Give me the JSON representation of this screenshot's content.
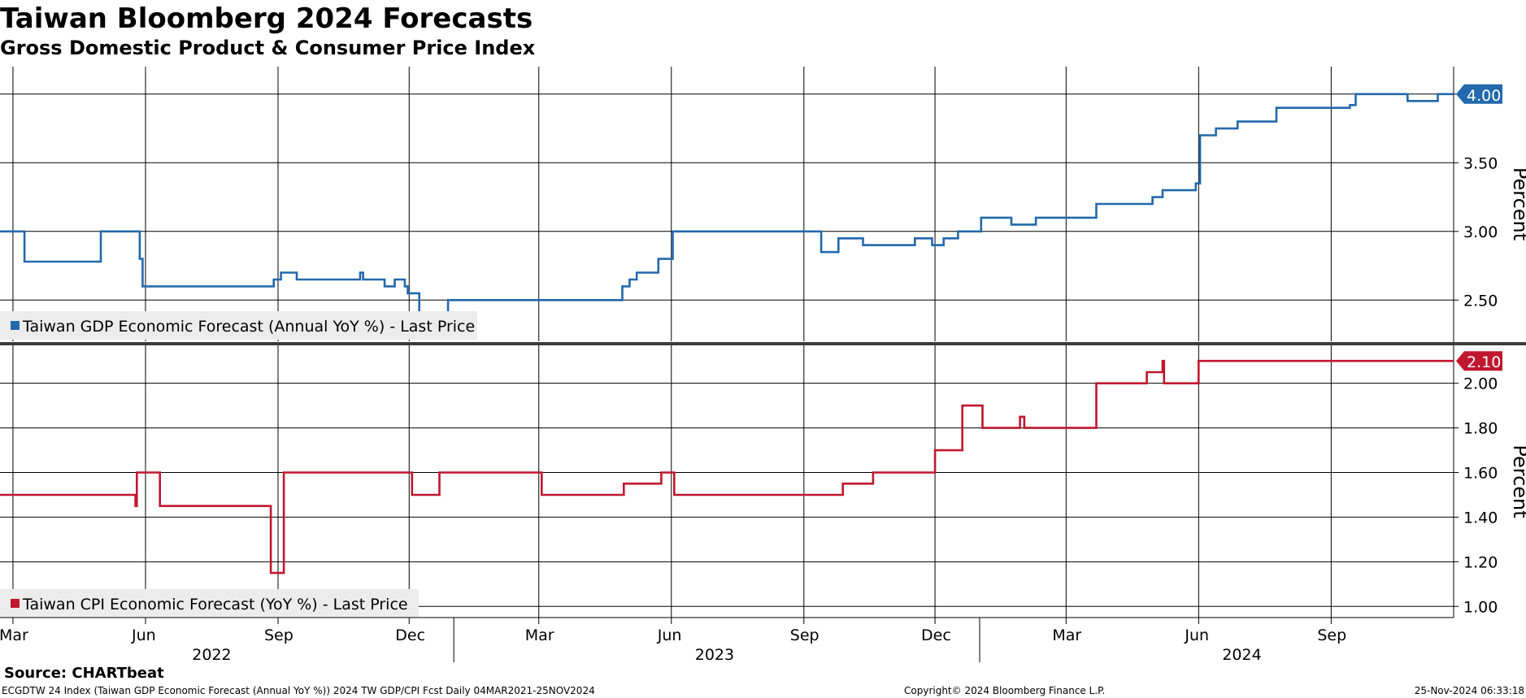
{
  "title": "Taiwan Bloomberg 2024 Forecasts",
  "subtitle": "Gross Domestic Product & Consumer Price Index",
  "footer": {
    "source": "Source: CHARTbeat",
    "left": "ECGDTW 24 Index (Taiwan GDP Economic Forecast (Annual YoY %)) 2024 TW GDP/CPI Fcst  Daily 04MAR2021-25NOV2024",
    "middle": "Copyright© 2024 Bloomberg Finance L.P.",
    "right": "25-Nov-2024 06:33:18"
  },
  "x_axis": {
    "range": [
      "2022-02-20",
      "2024-11-25"
    ],
    "month_ticks": [
      {
        "label": "Mar",
        "date": "2022-03-01"
      },
      {
        "label": "Jun",
        "date": "2022-06-01"
      },
      {
        "label": "Sep",
        "date": "2022-09-01"
      },
      {
        "label": "Dec",
        "date": "2022-12-01"
      },
      {
        "label": "Mar",
        "date": "2023-03-01"
      },
      {
        "label": "Jun",
        "date": "2023-06-01"
      },
      {
        "label": "Sep",
        "date": "2023-09-01"
      },
      {
        "label": "Dec",
        "date": "2023-12-01"
      },
      {
        "label": "Mar",
        "date": "2024-03-01"
      },
      {
        "label": "Jun",
        "date": "2024-06-01"
      },
      {
        "label": "Sep",
        "date": "2024-09-01"
      }
    ],
    "year_labels": [
      {
        "label": "2022",
        "date": "2022-07-17"
      },
      {
        "label": "2023",
        "date": "2023-07-01"
      },
      {
        "label": "2024",
        "date": "2024-07-01"
      }
    ],
    "year_separators": [
      "2023-01-01",
      "2024-01-01"
    ]
  },
  "chart_data": [
    {
      "type": "line",
      "ylabel": "Percent",
      "ylim": [
        2.2,
        4.2
      ],
      "yticks": [
        2.5,
        3.0,
        3.5,
        4.0
      ],
      "grid": true,
      "legend_position": "bottom-left",
      "last_value_label": "4.00",
      "color": "#2369ac",
      "series": [
        {
          "name": "Taiwan GDP Economic Forecast (Annual YoY %) - Last Price",
          "step_points": [
            [
              "2022-02-20",
              3.0
            ],
            [
              "2022-03-09",
              2.78
            ],
            [
              "2022-05-01",
              3.0
            ],
            [
              "2022-05-28",
              2.8
            ],
            [
              "2022-05-30",
              2.6
            ],
            [
              "2022-08-29",
              2.65
            ],
            [
              "2022-09-03",
              2.7
            ],
            [
              "2022-09-14",
              2.65
            ],
            [
              "2022-10-28",
              2.7
            ],
            [
              "2022-10-30",
              2.65
            ],
            [
              "2022-11-14",
              2.6
            ],
            [
              "2022-11-21",
              2.65
            ],
            [
              "2022-11-28",
              2.6
            ],
            [
              "2022-11-30",
              2.55
            ],
            [
              "2022-12-08",
              2.4
            ],
            [
              "2022-12-28",
              2.5
            ],
            [
              "2023-04-28",
              2.6
            ],
            [
              "2023-05-03",
              2.65
            ],
            [
              "2023-05-08",
              2.7
            ],
            [
              "2023-05-23",
              2.8
            ],
            [
              "2023-06-02",
              3.0
            ],
            [
              "2023-09-13",
              2.85
            ],
            [
              "2023-09-25",
              2.95
            ],
            [
              "2023-10-12",
              2.9
            ],
            [
              "2023-11-17",
              2.95
            ],
            [
              "2023-11-29",
              2.9
            ],
            [
              "2023-12-07",
              2.95
            ],
            [
              "2023-12-17",
              3.0
            ],
            [
              "2024-01-02",
              3.1
            ],
            [
              "2024-01-23",
              3.05
            ],
            [
              "2024-02-09",
              3.1
            ],
            [
              "2024-03-22",
              3.2
            ],
            [
              "2024-04-30",
              3.25
            ],
            [
              "2024-05-07",
              3.3
            ],
            [
              "2024-05-30",
              3.35
            ],
            [
              "2024-06-02",
              3.7
            ],
            [
              "2024-06-13",
              3.75
            ],
            [
              "2024-06-28",
              3.8
            ],
            [
              "2024-07-25",
              3.9
            ],
            [
              "2024-09-14",
              3.92
            ],
            [
              "2024-09-18",
              4.0
            ],
            [
              "2024-10-24",
              3.95
            ],
            [
              "2024-11-14",
              4.0
            ],
            [
              "2024-11-25",
              4.0
            ]
          ]
        }
      ]
    },
    {
      "type": "line",
      "ylabel": "Percent",
      "ylim": [
        0.95,
        2.17
      ],
      "yticks": [
        1.0,
        1.2,
        1.4,
        1.6,
        1.8,
        2.0
      ],
      "grid": true,
      "legend_position": "bottom-left",
      "last_value_label": "2.10",
      "color": "#c0172e",
      "series": [
        {
          "name": "Taiwan CPI Economic Forecast (YoY %) - Last Price",
          "step_points": [
            [
              "2022-02-20",
              1.5
            ],
            [
              "2022-05-25",
              1.45
            ],
            [
              "2022-05-26",
              1.6
            ],
            [
              "2022-06-11",
              1.45
            ],
            [
              "2022-08-27",
              1.15
            ],
            [
              "2022-09-05",
              1.6
            ],
            [
              "2022-12-03",
              1.5
            ],
            [
              "2022-12-22",
              1.6
            ],
            [
              "2023-03-03",
              1.5
            ],
            [
              "2023-04-29",
              1.55
            ],
            [
              "2023-05-25",
              1.6
            ],
            [
              "2023-06-03",
              1.5
            ],
            [
              "2023-09-28",
              1.55
            ],
            [
              "2023-10-19",
              1.6
            ],
            [
              "2023-12-01",
              1.7
            ],
            [
              "2023-12-20",
              1.9
            ],
            [
              "2024-01-03",
              1.8
            ],
            [
              "2024-01-29",
              1.85
            ],
            [
              "2024-02-01",
              1.8
            ],
            [
              "2024-03-22",
              2.0
            ],
            [
              "2024-04-26",
              2.05
            ],
            [
              "2024-05-07",
              2.1
            ],
            [
              "2024-05-08",
              2.0
            ],
            [
              "2024-06-01",
              2.1
            ],
            [
              "2024-11-25",
              2.1
            ]
          ]
        }
      ]
    }
  ]
}
